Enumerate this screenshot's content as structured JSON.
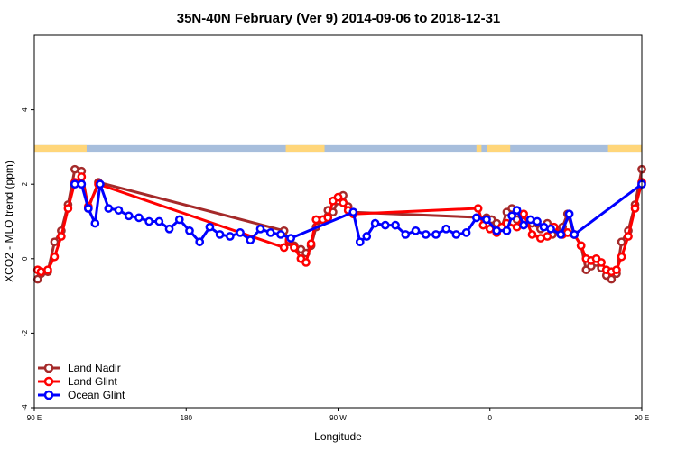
{
  "chart_data": {
    "type": "line",
    "title": "35N-40N February (Ver 9)   2014-09-06 to 2018-12-31",
    "xlabel": "Longitude",
    "ylabel": "XCO2 - MLO trend (ppm)",
    "xlim": [
      90,
      450
    ],
    "ylim": [
      -4,
      6
    ],
    "x_ticks": [
      {
        "value": 90,
        "label": "90 E"
      },
      {
        "value": 180,
        "label": "180"
      },
      {
        "value": 270,
        "label": "90 W"
      },
      {
        "value": 360,
        "label": "0"
      },
      {
        "value": 450,
        "label": "90 E"
      },
      {
        "value": 540,
        "label": "180"
      }
    ],
    "y_ticks": [
      {
        "value": -4,
        "label": "-4"
      },
      {
        "value": -2,
        "label": "-2"
      },
      {
        "value": 0,
        "label": "0"
      },
      {
        "value": 2,
        "label": "2"
      },
      {
        "value": 4,
        "label": "4"
      }
    ],
    "legend_position": "bottom-left",
    "land_ocean_band": {
      "y_range": [
        2.85,
        3.05
      ],
      "land_color": "#ffd67a",
      "ocean_color": "#a7bedc",
      "land_segments": [
        [
          90,
          121
        ],
        [
          239,
          262
        ],
        [
          352,
          355
        ],
        [
          358,
          372
        ],
        [
          430,
          455
        ],
        [
          569,
          595
        ]
      ]
    },
    "series": [
      {
        "name": "Land Nadir",
        "color": "#a52a2a",
        "points": [
          [
            92,
            -0.55
          ],
          [
            94,
            -0.4
          ],
          [
            98,
            -0.35
          ],
          [
            102,
            0.45
          ],
          [
            106,
            0.75
          ],
          [
            110,
            1.45
          ],
          [
            114,
            2.4
          ],
          [
            118,
            2.35
          ],
          [
            122,
            1.35
          ],
          [
            128,
            2.05
          ],
          [
            238,
            0.75
          ],
          [
            241,
            0.45
          ],
          [
            244,
            0.35
          ],
          [
            248,
            0.25
          ],
          [
            251,
            0.15
          ],
          [
            254,
            0.35
          ],
          [
            257,
            0.85
          ],
          [
            261,
            1.05
          ],
          [
            264,
            1.3
          ],
          [
            267,
            1.25
          ],
          [
            270,
            1.55
          ],
          [
            273,
            1.7
          ],
          [
            276,
            1.4
          ],
          [
            279,
            1.25
          ],
          [
            358,
            1.1
          ],
          [
            361,
            1.05
          ],
          [
            364,
            0.95
          ],
          [
            367,
            0.85
          ],
          [
            370,
            1.25
          ],
          [
            373,
            1.35
          ],
          [
            376,
            1.05
          ],
          [
            380,
            1.0
          ],
          [
            385,
            0.95
          ],
          [
            390,
            0.8
          ],
          [
            394,
            0.95
          ],
          [
            397,
            0.65
          ],
          [
            400,
            0.75
          ],
          [
            403,
            0.85
          ],
          [
            406,
            1.2
          ],
          [
            410,
            0.65
          ],
          [
            414,
            0.35
          ],
          [
            417,
            -0.3
          ],
          [
            420,
            -0.2
          ],
          [
            423,
            -0.1
          ],
          [
            426,
            -0.25
          ],
          [
            429,
            -0.45
          ],
          [
            432,
            -0.55
          ],
          [
            435,
            -0.4
          ],
          [
            438,
            0.45
          ],
          [
            442,
            0.75
          ],
          [
            446,
            1.45
          ],
          [
            450,
            2.4
          ]
        ]
      },
      {
        "name": "Land Glint",
        "color": "#ff0000",
        "points": [
          [
            92,
            -0.3
          ],
          [
            94,
            -0.35
          ],
          [
            98,
            -0.3
          ],
          [
            102,
            0.05
          ],
          [
            106,
            0.6
          ],
          [
            110,
            1.35
          ],
          [
            114,
            2.05
          ],
          [
            118,
            2.2
          ],
          [
            122,
            1.4
          ],
          [
            128,
            2.0
          ],
          [
            238,
            0.3
          ],
          [
            241,
            0.5
          ],
          [
            244,
            0.3
          ],
          [
            248,
            0.0
          ],
          [
            251,
            -0.1
          ],
          [
            254,
            0.4
          ],
          [
            257,
            1.05
          ],
          [
            261,
            1.05
          ],
          [
            264,
            1.1
          ],
          [
            267,
            1.55
          ],
          [
            270,
            1.65
          ],
          [
            273,
            1.5
          ],
          [
            276,
            1.3
          ],
          [
            279,
            1.2
          ],
          [
            353,
            1.35
          ],
          [
            356,
            0.9
          ],
          [
            360,
            0.8
          ],
          [
            364,
            0.7
          ],
          [
            367,
            0.85
          ],
          [
            370,
            0.95
          ],
          [
            376,
            0.85
          ],
          [
            380,
            1.2
          ],
          [
            385,
            0.65
          ],
          [
            390,
            0.55
          ],
          [
            394,
            0.6
          ],
          [
            398,
            0.85
          ],
          [
            403,
            0.65
          ],
          [
            406,
            0.7
          ],
          [
            410,
            0.65
          ],
          [
            414,
            0.35
          ],
          [
            417,
            0.0
          ],
          [
            420,
            -0.05
          ],
          [
            423,
            0.0
          ],
          [
            426,
            -0.1
          ],
          [
            429,
            -0.3
          ],
          [
            432,
            -0.35
          ],
          [
            435,
            -0.3
          ],
          [
            438,
            0.05
          ],
          [
            442,
            0.6
          ],
          [
            446,
            1.35
          ],
          [
            450,
            2.05
          ]
        ]
      },
      {
        "name": "Ocean Glint",
        "color": "#0000ff",
        "points": [
          [
            114,
            2.0
          ],
          [
            118,
            2.0
          ],
          [
            122,
            1.35
          ],
          [
            126,
            0.95
          ],
          [
            129,
            2.0
          ],
          [
            134,
            1.35
          ],
          [
            140,
            1.3
          ],
          [
            146,
            1.15
          ],
          [
            152,
            1.1
          ],
          [
            158,
            1.0
          ],
          [
            164,
            1.0
          ],
          [
            170,
            0.8
          ],
          [
            176,
            1.05
          ],
          [
            182,
            0.75
          ],
          [
            188,
            0.45
          ],
          [
            194,
            0.85
          ],
          [
            200,
            0.65
          ],
          [
            206,
            0.6
          ],
          [
            212,
            0.7
          ],
          [
            218,
            0.5
          ],
          [
            224,
            0.8
          ],
          [
            230,
            0.7
          ],
          [
            236,
            0.65
          ],
          [
            242,
            0.55
          ],
          [
            279,
            1.25
          ],
          [
            283,
            0.45
          ],
          [
            287,
            0.6
          ],
          [
            292,
            0.95
          ],
          [
            298,
            0.9
          ],
          [
            304,
            0.9
          ],
          [
            310,
            0.65
          ],
          [
            316,
            0.75
          ],
          [
            322,
            0.65
          ],
          [
            328,
            0.65
          ],
          [
            334,
            0.8
          ],
          [
            340,
            0.65
          ],
          [
            346,
            0.7
          ],
          [
            352,
            1.1
          ],
          [
            358,
            1.05
          ],
          [
            364,
            0.75
          ],
          [
            370,
            0.75
          ],
          [
            373,
            1.15
          ],
          [
            376,
            1.3
          ],
          [
            380,
            0.9
          ],
          [
            384,
            1.05
          ],
          [
            388,
            1.0
          ],
          [
            392,
            0.85
          ],
          [
            396,
            0.8
          ],
          [
            402,
            0.65
          ],
          [
            407,
            1.2
          ],
          [
            410,
            0.65
          ],
          [
            450,
            2.0
          ],
          [
            454,
            2.0
          ],
          [
            458,
            1.35
          ],
          [
            462,
            0.95
          ]
        ]
      }
    ]
  }
}
